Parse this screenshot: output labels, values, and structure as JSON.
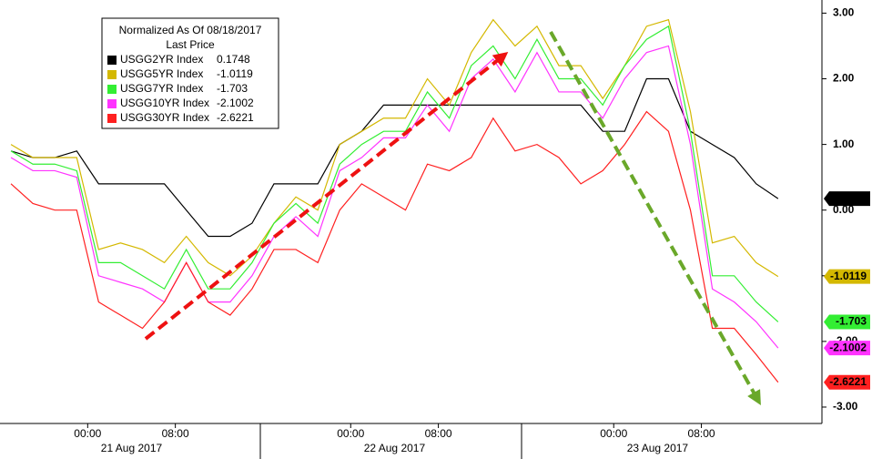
{
  "chart_data": {
    "type": "line",
    "legend_title": "Normalized As Of 08/18/2017",
    "legend_subtitle": "Last Price",
    "x": [
      -7,
      -5,
      -3,
      -1,
      1,
      3,
      5,
      7,
      9,
      11,
      13,
      15,
      17,
      19,
      21,
      23,
      25,
      27,
      29,
      31,
      33,
      35,
      37,
      39,
      41,
      43,
      45,
      47,
      49,
      51,
      53,
      55,
      57,
      59,
      61,
      63
    ],
    "xlim": [
      -8,
      67
    ],
    "xticks": [
      {
        "value": 0,
        "label": "00:00"
      },
      {
        "value": 8,
        "label": "08:00"
      },
      {
        "value": 24,
        "label": "00:00"
      },
      {
        "value": 32,
        "label": "08:00"
      },
      {
        "value": 48,
        "label": "00:00"
      },
      {
        "value": 56,
        "label": "08:00"
      }
    ],
    "x_date_labels": [
      {
        "value": 4,
        "label": "21 Aug 2017"
      },
      {
        "value": 28,
        "label": "22 Aug 2017"
      },
      {
        "value": 52,
        "label": "23 Aug 2017"
      }
    ],
    "ylim": [
      -3.25,
      3.2
    ],
    "yticks": [
      {
        "value": 3,
        "label": "3.00"
      },
      {
        "value": 2,
        "label": "2.00"
      },
      {
        "value": 1,
        "label": "1.00"
      },
      {
        "value": 0,
        "label": "0.00"
      },
      {
        "value": -1,
        "label": "-1.00"
      },
      {
        "value": -2,
        "label": "-2.00"
      },
      {
        "value": -3,
        "label": "-3.00"
      }
    ],
    "series": [
      {
        "name": "USGG2YR Index",
        "color": "#000000",
        "values": [
          0.9,
          0.8,
          0.8,
          0.9,
          0.4,
          0.4,
          0.4,
          0.4,
          0.0,
          -0.4,
          -0.4,
          -0.2,
          0.4,
          0.4,
          0.4,
          1.0,
          1.2,
          1.6,
          1.6,
          1.6,
          1.6,
          1.6,
          1.6,
          1.6,
          1.6,
          1.6,
          1.6,
          1.2,
          1.2,
          2.0,
          2.0,
          1.2,
          1.0,
          0.8,
          0.4,
          0.1748
        ]
      },
      {
        "name": "USGG5YR Index",
        "color": "#d4b800",
        "values": [
          1.0,
          0.8,
          0.8,
          0.8,
          -0.6,
          -0.5,
          -0.6,
          -0.8,
          -0.4,
          -0.8,
          -1.0,
          -0.7,
          -0.2,
          0.2,
          0.0,
          1.0,
          1.2,
          1.4,
          1.4,
          2.0,
          1.6,
          2.4,
          2.9,
          2.5,
          2.8,
          2.2,
          2.2,
          1.7,
          2.2,
          2.8,
          2.9,
          1.5,
          -0.5,
          -0.4,
          -0.8,
          -1.0119
        ]
      },
      {
        "name": "USGG7YR Index",
        "color": "#33ee33",
        "values": [
          0.9,
          0.7,
          0.7,
          0.6,
          -0.8,
          -0.8,
          -1.0,
          -1.2,
          -0.6,
          -1.2,
          -1.2,
          -0.8,
          -0.2,
          0.1,
          -0.2,
          0.7,
          1.0,
          1.2,
          1.2,
          1.8,
          1.4,
          2.2,
          2.5,
          2.0,
          2.6,
          2.0,
          2.0,
          1.6,
          2.2,
          2.6,
          2.8,
          1.2,
          -1.0,
          -1.0,
          -1.4,
          -1.703
        ]
      },
      {
        "name": "USGG10YR Index",
        "color": "#ff33ff",
        "values": [
          0.8,
          0.6,
          0.6,
          0.5,
          -1.0,
          -1.1,
          -1.2,
          -1.4,
          -0.8,
          -1.4,
          -1.4,
          -1.0,
          -0.4,
          -0.1,
          -0.4,
          0.6,
          0.8,
          1.1,
          1.1,
          1.6,
          1.2,
          2.0,
          2.3,
          1.8,
          2.4,
          1.8,
          1.8,
          1.4,
          2.0,
          2.4,
          2.5,
          1.0,
          -1.2,
          -1.4,
          -1.7,
          -2.1002
        ]
      },
      {
        "name": "USGG30YR Index",
        "color": "#ff2020",
        "values": [
          0.4,
          0.1,
          0.0,
          0.0,
          -1.4,
          -1.6,
          -1.8,
          -1.4,
          -0.8,
          -1.4,
          -1.6,
          -1.2,
          -0.6,
          -0.6,
          -0.8,
          0.0,
          0.4,
          0.2,
          0.0,
          0.7,
          0.6,
          0.8,
          1.4,
          0.9,
          1.0,
          0.8,
          0.4,
          0.6,
          1.0,
          1.5,
          1.2,
          0.0,
          -1.8,
          -1.8,
          -2.2,
          -2.6221
        ]
      }
    ]
  }
}
